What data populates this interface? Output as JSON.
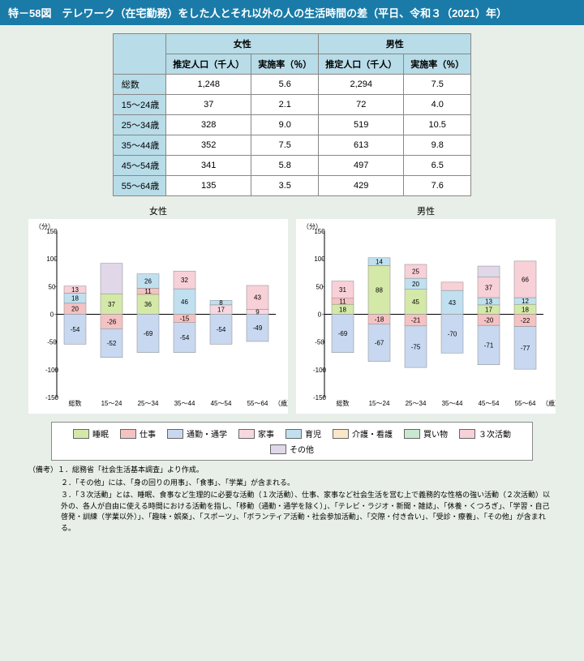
{
  "title": "特－58図　テレワーク（在宅勤務）をした人とそれ以外の人の生活時間の差（平日、令和３（2021）年）",
  "table": {
    "headers": {
      "female": "女性",
      "male": "男性",
      "pop": "推定人口（千人）",
      "rate": "実施率（％）"
    },
    "rows": [
      {
        "label": "総数",
        "fp": "1,248",
        "fr": "5.6",
        "mp": "2,294",
        "mr": "7.5"
      },
      {
        "label": "15～24歳",
        "fp": "37",
        "fr": "2.1",
        "mp": "72",
        "mr": "4.0"
      },
      {
        "label": "25～34歳",
        "fp": "328",
        "fr": "9.0",
        "mp": "519",
        "mr": "10.5"
      },
      {
        "label": "35～44歳",
        "fp": "352",
        "fr": "7.5",
        "mp": "613",
        "mr": "9.8"
      },
      {
        "label": "45～54歳",
        "fp": "341",
        "fr": "5.8",
        "mp": "497",
        "mr": "6.5"
      },
      {
        "label": "55～64歳",
        "fp": "135",
        "fr": "3.5",
        "mp": "429",
        "mr": "7.6"
      }
    ]
  },
  "legend": [
    {
      "label": "睡眠",
      "fill": "#d4e8a8",
      "pattern": "diag"
    },
    {
      "label": "仕事",
      "fill": "#f4c2c2",
      "pattern": "none"
    },
    {
      "label": "通勤・通学",
      "fill": "#c8d8f0",
      "pattern": "dots"
    },
    {
      "label": "家事",
      "fill": "#f8d8e0",
      "pattern": "diag2"
    },
    {
      "label": "育児",
      "fill": "#c0e0f0",
      "pattern": "grid"
    },
    {
      "label": "介護・看護",
      "fill": "#f8e8c8",
      "pattern": "dots"
    },
    {
      "label": "買い物",
      "fill": "#c8e8d0",
      "pattern": "diag"
    },
    {
      "label": "３次活動",
      "fill": "#f8d0d8",
      "pattern": "hatch"
    },
    {
      "label": "その他",
      "fill": "#e0d8e8",
      "pattern": "hlines"
    }
  ],
  "charts": {
    "female": {
      "title": "女性",
      "ylabel": "（分）",
      "xlabel": "（歳）",
      "ylim": [
        -150,
        150
      ],
      "yticks": [
        -150,
        -100,
        -50,
        0,
        50,
        100,
        150
      ],
      "categories": [
        "総数",
        "15～24",
        "25～34",
        "35～44",
        "45～54",
        "55～64"
      ],
      "stacks": [
        {
          "pos": [
            {
              "v": 20,
              "c": "#f4c2c2",
              "l": "20"
            },
            {
              "v": 18,
              "c": "#c0e0f0",
              "l": "18"
            },
            {
              "v": 13,
              "c": "#f8d0d8",
              "l": "13"
            }
          ],
          "neg": [
            {
              "v": -54,
              "c": "#c8d8f0",
              "l": "-54"
            }
          ]
        },
        {
          "pos": [
            {
              "v": 37,
              "c": "#d4e8a8",
              "l": "37"
            },
            {
              "v": 55,
              "c": "#e0d8e8",
              "l": ""
            }
          ],
          "neg": [
            {
              "v": -26,
              "c": "#f4c2c2",
              "l": "-26"
            },
            {
              "v": -52,
              "c": "#c8d8f0",
              "l": "-52"
            }
          ]
        },
        {
          "pos": [
            {
              "v": 36,
              "c": "#d4e8a8",
              "l": "36"
            },
            {
              "v": 11,
              "c": "#f4c2c2",
              "l": "11"
            },
            {
              "v": 26,
              "c": "#c0e0f0",
              "l": "26"
            }
          ],
          "neg": [
            {
              "v": -69,
              "c": "#c8d8f0",
              "l": "-69"
            }
          ]
        },
        {
          "pos": [
            {
              "v": 46,
              "c": "#c0e0f0",
              "l": "46"
            },
            {
              "v": 32,
              "c": "#f8d0d8",
              "l": "32"
            }
          ],
          "neg": [
            {
              "v": -15,
              "c": "#f4c2c2",
              "l": "-15"
            },
            {
              "v": -54,
              "c": "#c8d8f0",
              "l": "-54"
            }
          ]
        },
        {
          "pos": [
            {
              "v": 17,
              "c": "#f8d8e0",
              "l": "17"
            },
            {
              "v": 8,
              "c": "#c0e0f0",
              "l": "8"
            }
          ],
          "neg": [
            {
              "v": -54,
              "c": "#c8d8f0",
              "l": "-54"
            }
          ]
        },
        {
          "pos": [
            {
              "v": 9,
              "c": "#f8d8e0",
              "l": "9"
            },
            {
              "v": 43,
              "c": "#f8d0d8",
              "l": "43"
            }
          ],
          "neg": [
            {
              "v": -49,
              "c": "#c8d8f0",
              "l": "-49"
            }
          ]
        }
      ]
    },
    "male": {
      "title": "男性",
      "ylabel": "（分）",
      "xlabel": "（歳）",
      "ylim": [
        -150,
        150
      ],
      "yticks": [
        -150,
        -100,
        -50,
        0,
        50,
        100,
        150
      ],
      "categories": [
        "総数",
        "15～24",
        "25～34",
        "35～44",
        "45～54",
        "55～64"
      ],
      "stacks": [
        {
          "pos": [
            {
              "v": 18,
              "c": "#d4e8a8",
              "l": "18"
            },
            {
              "v": 11,
              "c": "#f4c2c2",
              "l": "11"
            },
            {
              "v": 31,
              "c": "#f8d0d8",
              "l": "31"
            }
          ],
          "neg": [
            {
              "v": -69,
              "c": "#c8d8f0",
              "l": "-69"
            }
          ]
        },
        {
          "pos": [
            {
              "v": 88,
              "c": "#d4e8a8",
              "l": "88"
            },
            {
              "v": 14,
              "c": "#c0e0f0",
              "l": "14"
            }
          ],
          "neg": [
            {
              "v": -18,
              "c": "#f4c2c2",
              "l": "-18"
            },
            {
              "v": -67,
              "c": "#c8d8f0",
              "l": "-67"
            }
          ]
        },
        {
          "pos": [
            {
              "v": 45,
              "c": "#d4e8a8",
              "l": "45"
            },
            {
              "v": 20,
              "c": "#c0e0f0",
              "l": "20"
            },
            {
              "v": 25,
              "c": "#f8d0d8",
              "l": "25"
            }
          ],
          "neg": [
            {
              "v": -21,
              "c": "#f4c2c2",
              "l": "-21"
            },
            {
              "v": -75,
              "c": "#c8d8f0",
              "l": "-75"
            }
          ]
        },
        {
          "pos": [
            {
              "v": 43,
              "c": "#c0e0f0",
              "l": "43"
            },
            {
              "v": 15,
              "c": "#f8d0d8",
              "l": ""
            }
          ],
          "neg": [
            {
              "v": -70,
              "c": "#c8d8f0",
              "l": "-70"
            }
          ]
        },
        {
          "pos": [
            {
              "v": 17,
              "c": "#d4e8a8",
              "l": "17"
            },
            {
              "v": 13,
              "c": "#c0e0f0",
              "l": "13"
            },
            {
              "v": 37,
              "c": "#f8d0d8",
              "l": "37"
            },
            {
              "v": 20,
              "c": "#e0d8e8",
              "l": ""
            }
          ],
          "neg": [
            {
              "v": -20,
              "c": "#f4c2c2",
              "l": "-20"
            },
            {
              "v": -71,
              "c": "#c8d8f0",
              "l": "-71"
            }
          ]
        },
        {
          "pos": [
            {
              "v": 18,
              "c": "#d4e8a8",
              "l": "18"
            },
            {
              "v": 12,
              "c": "#c0e0f0",
              "l": "12"
            },
            {
              "v": 66,
              "c": "#f8d0d8",
              "l": "66"
            }
          ],
          "neg": [
            {
              "v": -22,
              "c": "#f4c2c2",
              "l": "-22"
            },
            {
              "v": -77,
              "c": "#c8d8f0",
              "l": "-77"
            }
          ]
        }
      ]
    }
  },
  "notes": {
    "label": "（備考）",
    "items": [
      "１．総務省「社会生活基本調査」より作成。",
      "２．「その他」には、「身の回りの用事」、「食事」、「学業」が含まれる。",
      "３．「３次活動」とは、睡眠、食事など生理的に必要な活動（１次活動）、仕事、家事など社会生活を営む上で義務的な性格の強い活動（２次活動）以外の、各人が自由に使える時間における活動を指し、「移動（通勤・通学を除く）」、「テレビ・ラジオ・新聞・雑誌」、「休養・くつろぎ」、「学習・自己啓発・訓練（学業以外）」、「趣味・娯楽」、「スポーツ」、「ボランティア活動・社会参加活動」、「交際・付き合い」、「受診・療養」、「その他」が含まれる。"
    ]
  }
}
